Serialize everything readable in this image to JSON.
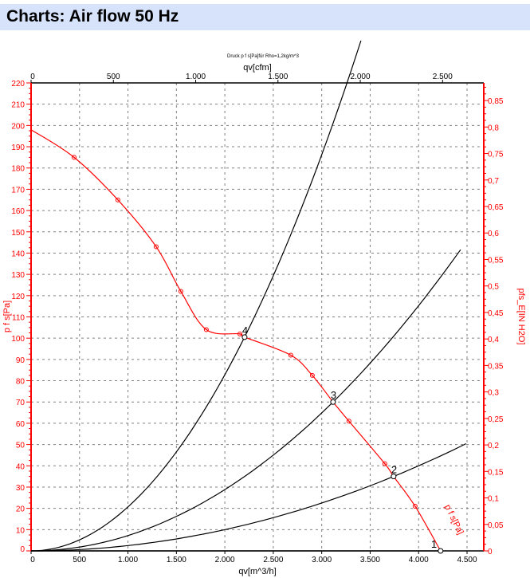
{
  "header": {
    "title": "Charts: Air flow 50 Hz"
  },
  "chart_data": {
    "type": "line",
    "title": "Druck p f s[Pa]für Rho=1,2kg/m^3",
    "xlabel": "qv[m^3/h]",
    "x2label": "qv[cfm]",
    "ylabel": "p f s[Pa]",
    "y2label": "pfs_E[IN H2O]",
    "xlim": [
      0,
      4700
    ],
    "ylim": [
      0,
      220
    ],
    "y2lim": [
      0,
      0.883
    ],
    "grid": true,
    "x_ticks": [
      "0",
      "500",
      "1.000",
      "1.500",
      "2.000",
      "2.500",
      "3.000",
      "3.500",
      "4.000",
      "4.500"
    ],
    "x2_ticks": [
      "0",
      "500",
      "1.000",
      "1.500",
      "2.000",
      "2.500"
    ],
    "y_ticks": [
      "0",
      "10",
      "20",
      "30",
      "40",
      "50",
      "60",
      "70",
      "80",
      "90",
      "100",
      "110",
      "120",
      "130",
      "140",
      "150",
      "160",
      "170",
      "180",
      "190",
      "200",
      "210",
      "220"
    ],
    "y2_ticks": [
      "0",
      "0,05",
      "0,1",
      "0,15",
      "0,2",
      "0,25",
      "0,3",
      "0,35",
      "0,4",
      "0,45",
      "0,5",
      "0,55",
      "0,6",
      "0,65",
      "0,7",
      "0,75",
      "0,8",
      "0,85"
    ],
    "colors": {
      "fan_curve": "#ff0000",
      "system_curves": "#000000",
      "grid": "#808080",
      "axis_left": "#ff0000",
      "axis_right": "#ff0000"
    },
    "fan_curve": {
      "name": "p f s[Pa]",
      "points": [
        [
          0,
          198
        ],
        [
          444,
          185
        ],
        [
          896,
          165
        ],
        [
          1291,
          143
        ],
        [
          1546,
          122
        ],
        [
          1809,
          104
        ],
        [
          2155,
          102
        ],
        [
          2204,
          100.5
        ],
        [
          2681,
          92
        ],
        [
          2903,
          82.5
        ],
        [
          3117,
          70
        ],
        [
          3281,
          61
        ],
        [
          3651,
          41
        ],
        [
          3742,
          35
        ],
        [
          3964,
          21
        ],
        [
          4227,
          0
        ]
      ],
      "markers": [
        [
          444,
          185
        ],
        [
          896,
          165
        ],
        [
          1291,
          143
        ],
        [
          1546,
          122
        ],
        [
          1809,
          104
        ],
        [
          2155,
          102
        ],
        [
          2681,
          92
        ],
        [
          2903,
          82.5
        ],
        [
          3281,
          61
        ],
        [
          3651,
          41
        ],
        [
          3964,
          21
        ]
      ]
    },
    "system_curves": [
      {
        "label": "1",
        "operating_point": [
          4227,
          0
        ],
        "q_max": 4227
      },
      {
        "label": "2",
        "operating_point": [
          3742,
          35
        ],
        "q_max": 4490
      },
      {
        "label": "3",
        "operating_point": [
          3117,
          70
        ],
        "q_max": 4433
      },
      {
        "label": "4",
        "operating_point": [
          2204,
          100.5
        ],
        "q_max": 3405
      }
    ]
  }
}
